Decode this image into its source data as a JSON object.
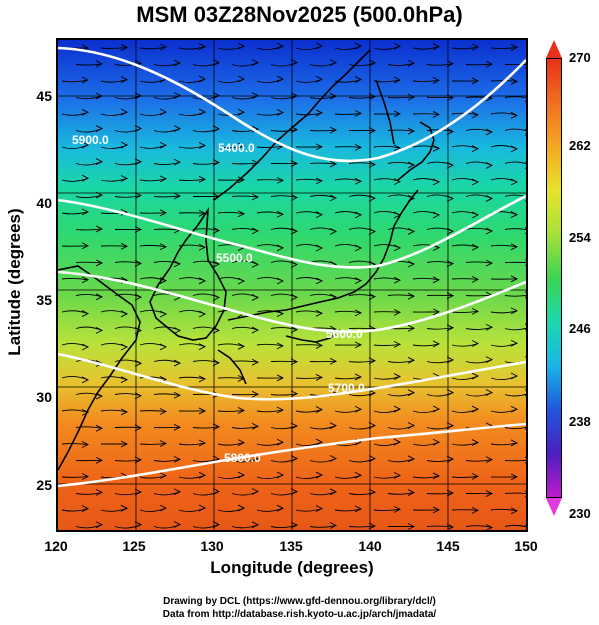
{
  "title": "MSM 03Z28Nov2025 (500.0hPa)",
  "xaxis": {
    "label": "Longitude (degrees)",
    "ticks": [
      "120",
      "125",
      "130",
      "135",
      "140",
      "145",
      "150"
    ]
  },
  "yaxis": {
    "label": "Latitude  (degrees)",
    "ticks": [
      "45",
      "40",
      "35",
      "30",
      "25"
    ]
  },
  "colorbar": {
    "ticks": [
      "270",
      "262",
      "254",
      "246",
      "238",
      "230"
    ],
    "min": 230,
    "max": 270
  },
  "contours": [
    {
      "label": "5400.0"
    },
    {
      "label": "5500.0"
    },
    {
      "label": "5600.0"
    },
    {
      "label": "5700.0"
    },
    {
      "label": "5800.0"
    },
    {
      "label": "5900.0"
    }
  ],
  "credits": {
    "line1": "Drawing by DCL (https://www.gfd-dennou.org/library/dcl/)",
    "line2": "Data from http://database.rish.kyoto-u.ac.jp/arch/jmadata/"
  },
  "chart_data": {
    "type": "heatmap",
    "title": "MSM 03Z28Nov2025 (500.0hPa)",
    "xlabel": "Longitude (degrees)",
    "ylabel": "Latitude  (degrees)",
    "xlim": [
      120,
      150
    ],
    "ylim": [
      22.5,
      47.5
    ],
    "color_range": [
      230,
      270
    ],
    "contour_levels": [
      5400,
      5500,
      5600,
      5700,
      5800,
      5900
    ]
  }
}
